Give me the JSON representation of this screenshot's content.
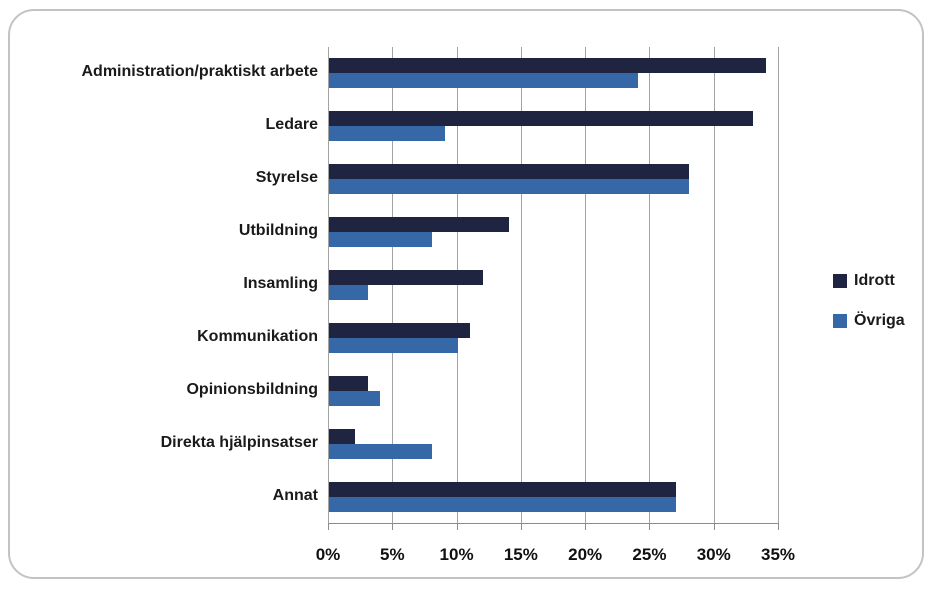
{
  "chart_data": {
    "type": "bar",
    "orientation": "horizontal",
    "title": "",
    "xlabel": "",
    "ylabel": "",
    "xlim": [
      0,
      35
    ],
    "grid": "vertical",
    "legend_position": "right",
    "x_tick_labels": [
      "0%",
      "5%",
      "10%",
      "15%",
      "20%",
      "25%",
      "30%",
      "35%"
    ],
    "x_tick_values": [
      0,
      5,
      10,
      15,
      20,
      25,
      30,
      35
    ],
    "categories": [
      "Administration/praktiskt arbete",
      "Ledare",
      "Styrelse",
      "Utbildning",
      "Insamling",
      "Kommunikation",
      "Opinionsbildning",
      "Direkta hjälpinsatser",
      "Annat"
    ],
    "series": [
      {
        "name": "Idrott",
        "color": "#1f2440",
        "values": [
          34,
          33,
          28,
          14,
          12,
          11,
          3,
          2,
          27
        ]
      },
      {
        "name": "Övriga",
        "color": "#3668a8",
        "values": [
          24,
          9,
          28,
          8,
          3,
          10,
          4,
          8,
          27
        ]
      }
    ]
  },
  "legend": {
    "items": [
      {
        "label": "Idrott",
        "swatch_icon": "square-swatch-icon",
        "color": "#1f2440"
      },
      {
        "label": "Övriga",
        "swatch_icon": "square-swatch-icon",
        "color": "#3668a8"
      }
    ]
  },
  "colors": {
    "frame_border": "#c3c3c3",
    "gridline": "#a3a3a3",
    "axis_line": "#8c8c8c",
    "background": "#ffffff",
    "text": "#1a1a1a"
  }
}
